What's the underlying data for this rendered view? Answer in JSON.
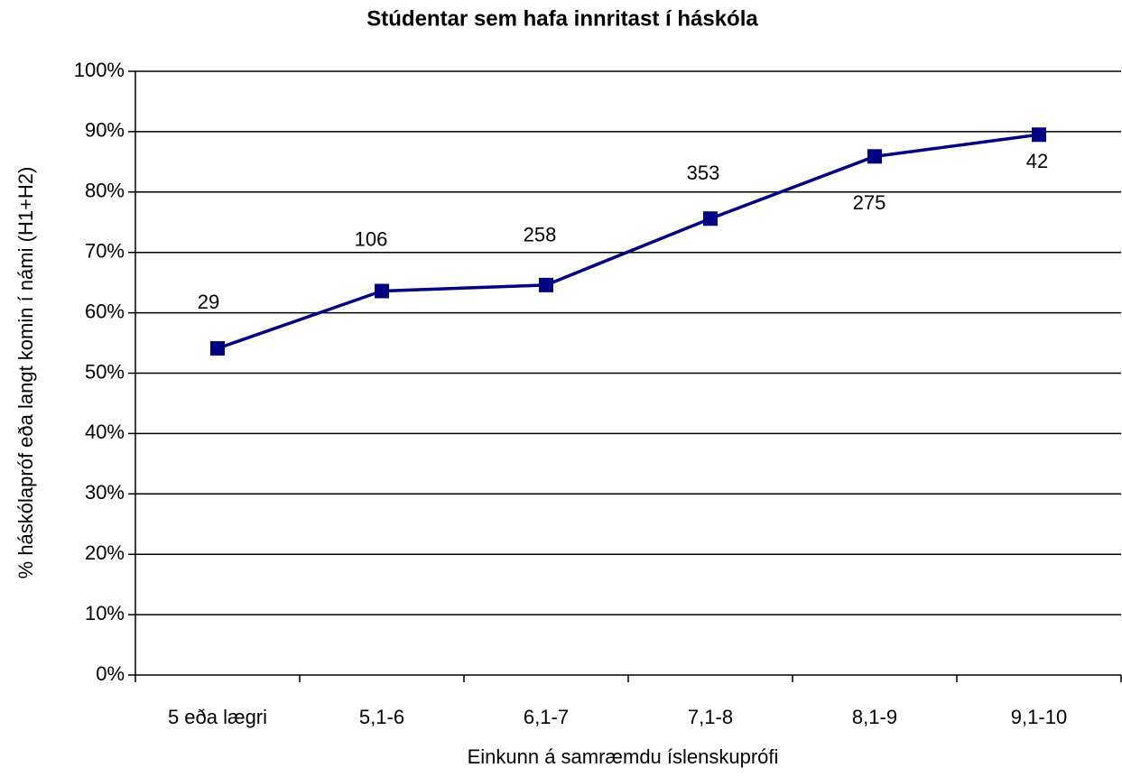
{
  "chart_data": {
    "type": "line",
    "title": "Stúdentar sem hafa innritast í háskóla",
    "x_label": "Einkunn á samræmdu íslenskuprófi",
    "y_label": "% háskólapróf eða langt komin í námi (H1+H2)",
    "categories": [
      "5 eða lægri",
      "5,1-6",
      "6,1-7",
      "7,1-8",
      "8,1-9",
      "9,1-10"
    ],
    "series": [
      {
        "name": null,
        "color": "#000080",
        "values": [
          54.1,
          63.6,
          64.6,
          75.6,
          85.9,
          89.5
        ]
      }
    ],
    "point_labels": [
      "29",
      "106",
      "258",
      "353",
      "275",
      "42"
    ],
    "ylim": [
      0,
      100
    ],
    "yticks": [
      {
        "value": 0,
        "label": "0%"
      },
      {
        "value": 10,
        "label": "10%"
      },
      {
        "value": 20,
        "label": "20%"
      },
      {
        "value": 30,
        "label": "30%"
      },
      {
        "value": 40,
        "label": "40%"
      },
      {
        "value": 50,
        "label": "50%"
      },
      {
        "value": 60,
        "label": "60%"
      },
      {
        "value": 70,
        "label": "70%"
      },
      {
        "value": 80,
        "label": "80%"
      },
      {
        "value": 90,
        "label": "90%"
      },
      {
        "value": 100,
        "label": "100%"
      }
    ],
    "grid": true
  }
}
